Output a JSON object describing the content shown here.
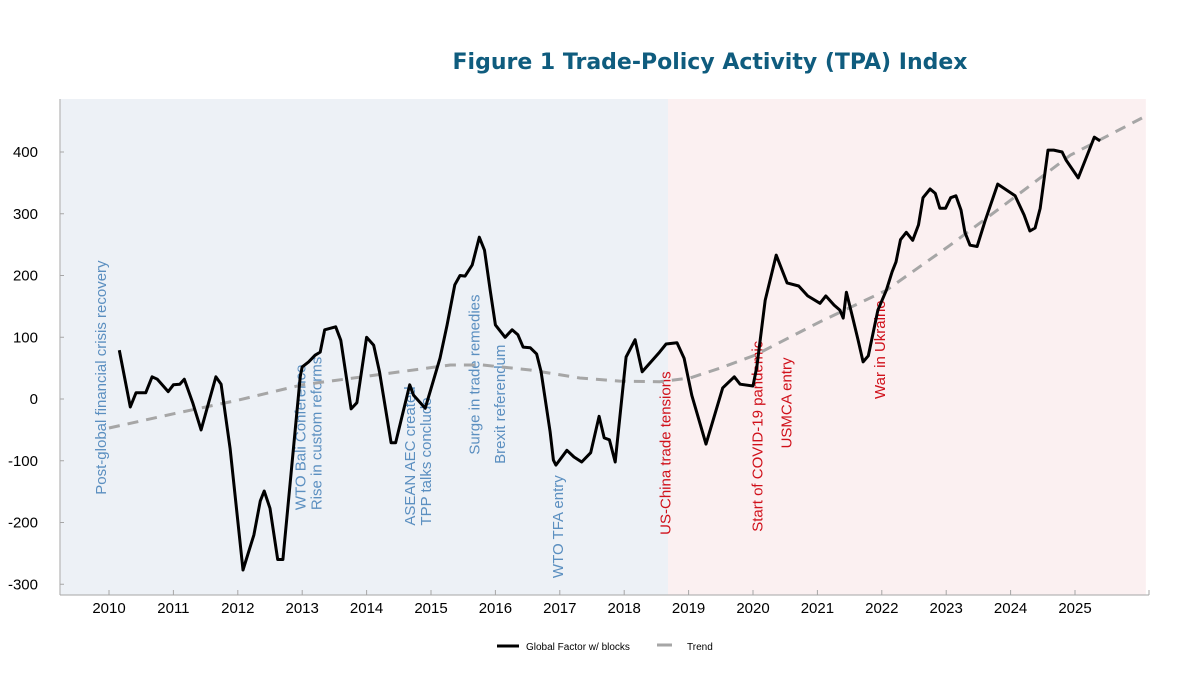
{
  "chart_data": {
    "type": "line",
    "title": "Figure 1 Trade-Policy Activity (TPA) Index",
    "xlabel": "",
    "ylabel": "",
    "xlim": [
      2009.25,
      2026.1
    ],
    "ylim": [
      -315,
      485
    ],
    "yticks": [
      400,
      300,
      200,
      100,
      0,
      -100,
      -200,
      -300
    ],
    "xticks": [
      2010,
      2011,
      2012,
      2013,
      2014,
      2015,
      2016,
      2017,
      2018,
      2019,
      2020,
      2021,
      2022,
      2023,
      2024,
      2025
    ],
    "grid": false,
    "regions": [
      {
        "name": "era-before",
        "from": 2009.25,
        "to": 2018.68,
        "color": "#edf1f6"
      },
      {
        "name": "era-after",
        "from": 2018.68,
        "to": 2026.1,
        "color": "#fbf0f1"
      }
    ],
    "legend": {
      "placement": "bottom-center",
      "entries": [
        "Global Factor w/ blocks",
        "Trend"
      ]
    },
    "series": [
      {
        "name": "Global Factor w/ blocks",
        "color": "#000000",
        "style": "solid",
        "points": [
          [
            2010.16,
            79
          ],
          [
            2010.33,
            -13
          ],
          [
            2010.42,
            10
          ],
          [
            2010.57,
            10
          ],
          [
            2010.67,
            36
          ],
          [
            2010.75,
            32
          ],
          [
            2010.92,
            12
          ],
          [
            2011.0,
            23
          ],
          [
            2011.1,
            24
          ],
          [
            2011.17,
            32
          ],
          [
            2011.3,
            -6
          ],
          [
            2011.43,
            -50
          ],
          [
            2011.55,
            -5
          ],
          [
            2011.66,
            36
          ],
          [
            2011.74,
            24
          ],
          [
            2011.88,
            -80
          ],
          [
            2012.08,
            -277
          ],
          [
            2012.25,
            -220
          ],
          [
            2012.35,
            -165
          ],
          [
            2012.41,
            -149
          ],
          [
            2012.5,
            -177
          ],
          [
            2012.62,
            -260
          ],
          [
            2012.7,
            -260
          ],
          [
            2012.97,
            37
          ],
          [
            2013.0,
            52
          ],
          [
            2013.1,
            60
          ],
          [
            2013.2,
            71
          ],
          [
            2013.28,
            76
          ],
          [
            2013.35,
            112
          ],
          [
            2013.52,
            117
          ],
          [
            2013.6,
            95
          ],
          [
            2013.76,
            -16
          ],
          [
            2013.85,
            -6
          ],
          [
            2014.0,
            100
          ],
          [
            2014.11,
            87
          ],
          [
            2014.2,
            44
          ],
          [
            2014.38,
            -71
          ],
          [
            2014.45,
            -71
          ],
          [
            2014.67,
            23
          ],
          [
            2014.73,
            6
          ],
          [
            2014.91,
            -15
          ],
          [
            2015.14,
            66
          ],
          [
            2015.25,
            120
          ],
          [
            2015.37,
            185
          ],
          [
            2015.45,
            200
          ],
          [
            2015.53,
            199
          ],
          [
            2015.64,
            217
          ],
          [
            2015.75,
            262
          ],
          [
            2015.83,
            241
          ],
          [
            2015.92,
            176
          ],
          [
            2016.0,
            120
          ],
          [
            2016.15,
            100
          ],
          [
            2016.26,
            112
          ],
          [
            2016.35,
            104
          ],
          [
            2016.43,
            84
          ],
          [
            2016.54,
            83
          ],
          [
            2016.64,
            73
          ],
          [
            2016.71,
            44
          ],
          [
            2016.85,
            -53
          ],
          [
            2016.9,
            -99
          ],
          [
            2016.94,
            -107
          ],
          [
            2017.11,
            -83
          ],
          [
            2017.22,
            -94
          ],
          [
            2017.34,
            -102
          ],
          [
            2017.48,
            -87
          ],
          [
            2017.61,
            -28
          ],
          [
            2017.69,
            -63
          ],
          [
            2017.77,
            -66
          ],
          [
            2017.86,
            -102
          ],
          [
            2018.03,
            68
          ],
          [
            2018.17,
            96
          ],
          [
            2018.28,
            44
          ],
          [
            2018.55,
            76
          ],
          [
            2018.65,
            89
          ],
          [
            2018.82,
            91
          ],
          [
            2018.93,
            66
          ],
          [
            2019.05,
            6
          ],
          [
            2019.27,
            -73
          ],
          [
            2019.53,
            18
          ],
          [
            2019.71,
            36
          ],
          [
            2019.8,
            24
          ],
          [
            2020.0,
            21
          ],
          [
            2020.06,
            53
          ],
          [
            2020.19,
            160
          ],
          [
            2020.36,
            233
          ],
          [
            2020.53,
            188
          ],
          [
            2020.71,
            183
          ],
          [
            2020.85,
            167
          ],
          [
            2021.04,
            155
          ],
          [
            2021.13,
            167
          ],
          [
            2021.26,
            152
          ],
          [
            2021.35,
            144
          ],
          [
            2021.4,
            131
          ],
          [
            2021.45,
            173
          ],
          [
            2021.55,
            131
          ],
          [
            2021.63,
            96
          ],
          [
            2021.71,
            60
          ],
          [
            2021.79,
            70
          ],
          [
            2021.94,
            144
          ],
          [
            2022.07,
            176
          ],
          [
            2022.16,
            206
          ],
          [
            2022.22,
            222
          ],
          [
            2022.29,
            258
          ],
          [
            2022.38,
            270
          ],
          [
            2022.48,
            257
          ],
          [
            2022.57,
            282
          ],
          [
            2022.64,
            326
          ],
          [
            2022.75,
            340
          ],
          [
            2022.83,
            333
          ],
          [
            2022.9,
            309
          ],
          [
            2022.99,
            309
          ],
          [
            2023.07,
            326
          ],
          [
            2023.15,
            329
          ],
          [
            2023.23,
            306
          ],
          [
            2023.29,
            270
          ],
          [
            2023.37,
            249
          ],
          [
            2023.48,
            247
          ],
          [
            2023.6,
            287
          ],
          [
            2023.8,
            348
          ],
          [
            2024.07,
            329
          ],
          [
            2024.21,
            298
          ],
          [
            2024.3,
            272
          ],
          [
            2024.38,
            277
          ],
          [
            2024.46,
            309
          ],
          [
            2024.58,
            403
          ],
          [
            2024.67,
            403
          ],
          [
            2024.8,
            400
          ],
          [
            2024.86,
            387
          ],
          [
            2025.05,
            358
          ],
          [
            2025.16,
            387
          ],
          [
            2025.3,
            424
          ],
          [
            2025.39,
            418
          ]
        ]
      },
      {
        "name": "Trend",
        "color": "#a6a6a6",
        "style": "dashed",
        "points": [
          [
            2010.0,
            -47
          ],
          [
            2011.0,
            -24
          ],
          [
            2012.0,
            -2
          ],
          [
            2013.0,
            23
          ],
          [
            2013.66,
            32
          ],
          [
            2014.52,
            44
          ],
          [
            2015.3,
            55
          ],
          [
            2015.8,
            55
          ],
          [
            2016.54,
            47
          ],
          [
            2017.31,
            34
          ],
          [
            2017.93,
            29
          ],
          [
            2018.55,
            28
          ],
          [
            2019.02,
            34
          ],
          [
            2019.49,
            50
          ],
          [
            2020.03,
            71
          ],
          [
            2021.04,
            125
          ],
          [
            2022.07,
            176
          ],
          [
            2023.06,
            249
          ],
          [
            2024.0,
            322
          ],
          [
            2024.93,
            395
          ],
          [
            2026.04,
            455
          ]
        ]
      }
    ],
    "annotations": [
      {
        "text": "Post-global financial crisis recovery",
        "x": 2009.95,
        "y": -155,
        "color": "#5b8fc0"
      },
      {
        "text": "WTO Bali Conference",
        "x": 2013.05,
        "y": -180,
        "color": "#5b8fc0"
      },
      {
        "text": "Rise in custom reforms",
        "x": 2013.3,
        "y": -180,
        "color": "#5b8fc0"
      },
      {
        "text": "ASEAN AEC created",
        "x": 2014.75,
        "y": -205,
        "color": "#5b8fc0"
      },
      {
        "text": "TPP talks conclude",
        "x": 2015.0,
        "y": -205,
        "color": "#5b8fc0"
      },
      {
        "text": "Surge in trade remedies",
        "x": 2015.75,
        "y": -90,
        "color": "#5b8fc0"
      },
      {
        "text": "Brexit referendum",
        "x": 2016.15,
        "y": -105,
        "color": "#5b8fc0"
      },
      {
        "text": "WTO TFA entry",
        "x": 2017.05,
        "y": -290,
        "color": "#5b8fc0"
      },
      {
        "text": "US-China trade tensions",
        "x": 2018.72,
        "y": -220,
        "color": "#d0111b"
      },
      {
        "text": "Start of COVID-19 pandemic",
        "x": 2020.15,
        "y": -215,
        "color": "#d0111b"
      },
      {
        "text": "USMCA entry",
        "x": 2020.6,
        "y": -80,
        "color": "#d0111b"
      },
      {
        "text": "War in Ukraine",
        "x": 2022.05,
        "y": 0,
        "color": "#d0111b"
      }
    ]
  }
}
